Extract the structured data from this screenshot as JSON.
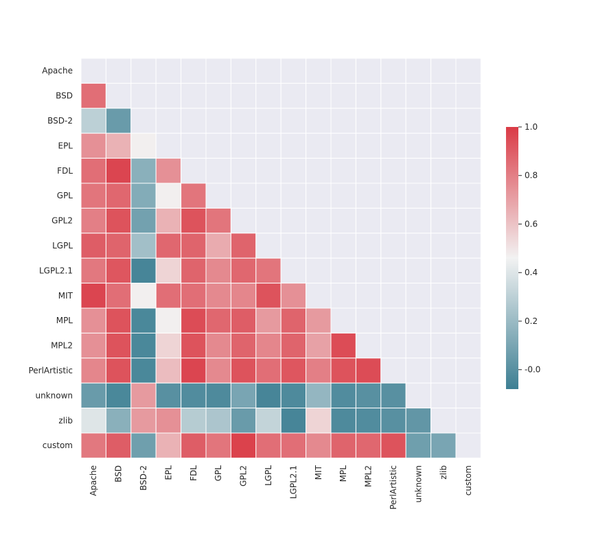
{
  "chart_data": {
    "type": "heatmap",
    "title": "",
    "xlabel": "",
    "ylabel": "",
    "mask": "upper-triangle-including-diagonal",
    "labels": [
      "Apache",
      "BSD",
      "BSD-2",
      "EPL",
      "FDL",
      "GPL",
      "GPL2",
      "LGPL",
      "LGPL2.1",
      "MIT",
      "MPL",
      "MPL2",
      "PerlArtistic",
      "unknown",
      "zlib",
      "custom"
    ],
    "lower_triangle_values": [
      [],
      [
        0.85
      ],
      [
        0.3,
        0.05
      ],
      [
        0.75,
        0.65,
        0.47
      ],
      [
        0.85,
        0.97,
        0.15,
        0.75
      ],
      [
        0.83,
        0.87,
        0.13,
        0.47,
        0.83
      ],
      [
        0.8,
        0.93,
        0.08,
        0.65,
        0.93,
        0.83
      ],
      [
        0.9,
        0.88,
        0.22,
        0.87,
        0.88,
        0.67,
        0.88
      ],
      [
        0.82,
        0.92,
        -0.05,
        0.55,
        0.88,
        0.77,
        0.87,
        0.83
      ],
      [
        0.97,
        0.85,
        0.47,
        0.85,
        0.85,
        0.77,
        0.78,
        0.93,
        0.75
      ],
      [
        0.75,
        0.93,
        -0.04,
        0.47,
        0.95,
        0.87,
        0.9,
        0.72,
        0.88,
        0.72
      ],
      [
        0.75,
        0.93,
        -0.04,
        0.55,
        0.93,
        0.77,
        0.88,
        0.78,
        0.88,
        0.7,
        0.95
      ],
      [
        0.78,
        0.93,
        -0.04,
        0.62,
        0.97,
        0.77,
        0.93,
        0.85,
        0.92,
        0.8,
        0.93,
        0.95
      ],
      [
        0.05,
        -0.04,
        0.72,
        0.0,
        -0.02,
        -0.03,
        0.1,
        -0.05,
        -0.03,
        0.18,
        -0.02,
        0.0,
        0.0
      ],
      [
        0.4,
        0.15,
        0.72,
        0.75,
        0.28,
        0.25,
        0.05,
        0.32,
        -0.05,
        0.55,
        -0.03,
        -0.02,
        0.0,
        0.03
      ],
      [
        0.82,
        0.9,
        0.07,
        0.65,
        0.9,
        0.83,
        0.98,
        0.85,
        0.85,
        0.77,
        0.88,
        0.87,
        0.93,
        0.07,
        0.1
      ]
    ],
    "colorbar": {
      "range": [
        -0.08,
        1.0
      ],
      "ticks": [
        "-0.0",
        "0.2",
        "0.4",
        "0.6",
        "0.8",
        "1.0"
      ],
      "tick_values": [
        0,
        0.2,
        0.4,
        0.6,
        0.8,
        1.0
      ]
    },
    "colors": {
      "low": "#3d7f93",
      "mid": "#f2f2f2",
      "high": "#da3b46",
      "masked": "#eaeaf2",
      "grid": "#ffffff"
    }
  }
}
